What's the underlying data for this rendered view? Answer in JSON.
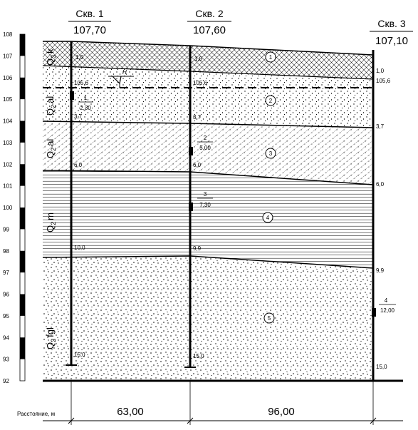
{
  "wells": [
    {
      "name": "Скв. 1",
      "elevation": "107,70",
      "depth": "15,0",
      "layer_depths": [
        "1,0",
        "3,7",
        "6,0",
        "10,0"
      ],
      "water_level": "105,6",
      "sample": {
        "number": "1",
        "depth": "2,30"
      }
    },
    {
      "name": "Скв. 2",
      "elevation": "107,60",
      "depth": "15,0",
      "layer_depths": [
        "1,0",
        "3,7",
        "6,0",
        "9,9"
      ],
      "water_level": "105,6",
      "samples": [
        {
          "number": "2",
          "depth": "5,00"
        },
        {
          "number": "3",
          "depth": "7,30"
        }
      ]
    },
    {
      "name": "Скв. 3",
      "elevation": "107,10",
      "depth": "15,0",
      "layer_depths": [
        "1,0",
        "3,7",
        "6,0",
        "9,9"
      ],
      "water_level": "105,6",
      "sample": {
        "number": "4",
        "depth": "12,00"
      }
    }
  ],
  "water_marker": "Н",
  "layers": [
    {
      "number": "1",
      "age_main": "Q",
      "age_sub": "3",
      "age_suffix": "k",
      "pattern": "cross-hatch"
    },
    {
      "number": "2",
      "age_main": "Q",
      "age_sub": "2",
      "age_suffix": "al",
      "pattern": "sand-dots"
    },
    {
      "number": "3",
      "age_main": "Q",
      "age_sub": "2",
      "age_suffix": "al",
      "pattern": "sandy-loam-hatch"
    },
    {
      "number": "4",
      "age_main": "Q",
      "age_sub": "2",
      "age_suffix": "m",
      "pattern": "clay-lines"
    },
    {
      "number": "5",
      "age_main": "Q",
      "age_sub": "2",
      "age_suffix": "fgl",
      "pattern": "gravel-dots"
    }
  ],
  "elevation_scale": [
    "92",
    "93",
    "94",
    "95",
    "96",
    "97",
    "98",
    "99",
    "100",
    "101",
    "102",
    "103",
    "104",
    "105",
    "106",
    "107",
    "108"
  ],
  "distance_label": "Расстояние, м",
  "distances": [
    "63,00",
    "96,00"
  ]
}
